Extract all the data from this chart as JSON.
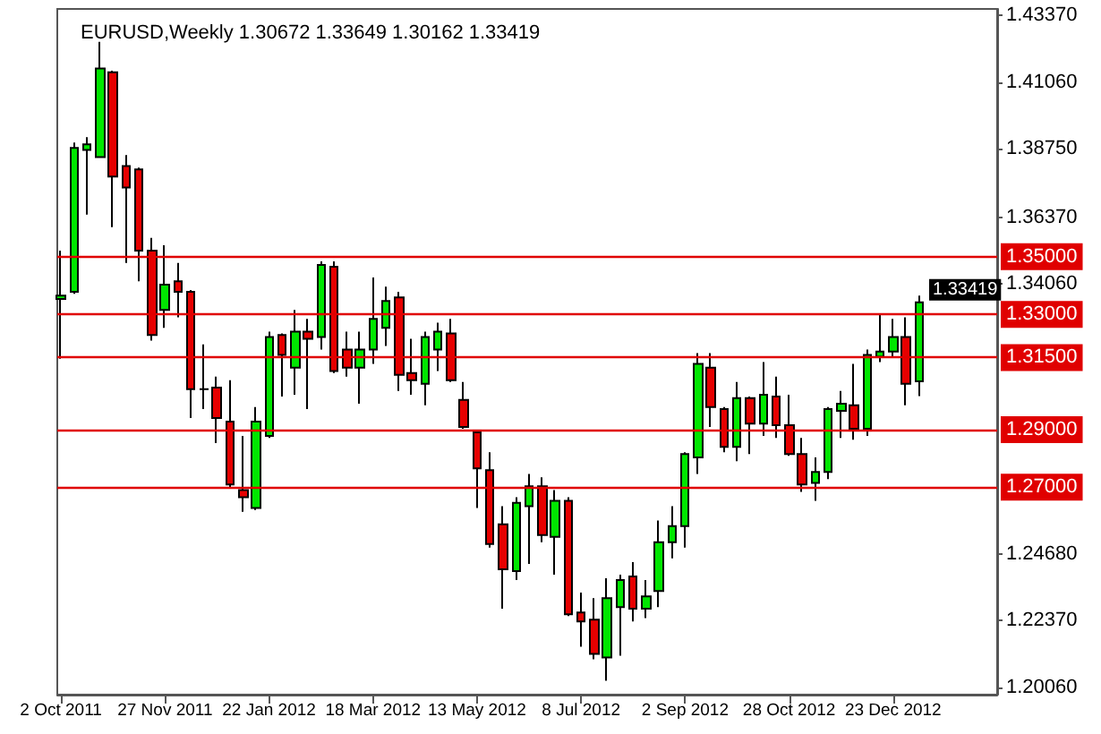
{
  "chart_data": {
    "type": "candlestick",
    "title": "EURUSD,Weekly 1.30672 1.33649 1.30162 1.33419",
    "x": [
      "2011-10-02",
      "2011-10-09",
      "2011-10-16",
      "2011-10-23",
      "2011-10-30",
      "2011-11-06",
      "2011-11-13",
      "2011-11-20",
      "2011-11-27",
      "2011-12-04",
      "2011-12-11",
      "2011-12-18",
      "2011-12-25",
      "2012-01-01",
      "2012-01-08",
      "2012-01-15",
      "2012-01-22",
      "2012-01-29",
      "2012-02-05",
      "2012-02-12",
      "2012-02-19",
      "2012-02-26",
      "2012-03-04",
      "2012-03-11",
      "2012-03-18",
      "2012-03-25",
      "2012-04-01",
      "2012-04-08",
      "2012-04-15",
      "2012-04-22",
      "2012-04-29",
      "2012-05-06",
      "2012-05-13",
      "2012-05-20",
      "2012-05-27",
      "2012-06-03",
      "2012-06-10",
      "2012-06-17",
      "2012-06-24",
      "2012-07-01",
      "2012-07-08",
      "2012-07-15",
      "2012-07-22",
      "2012-07-29",
      "2012-08-05",
      "2012-08-12",
      "2012-08-19",
      "2012-08-26",
      "2012-09-02",
      "2012-09-09",
      "2012-09-16",
      "2012-09-23",
      "2012-09-30",
      "2012-10-07",
      "2012-10-14",
      "2012-10-21",
      "2012-10-28",
      "2012-11-04",
      "2012-11-11",
      "2012-11-18",
      "2012-11-25",
      "2012-12-02",
      "2012-12-09",
      "2012-12-16",
      "2012-12-23",
      "2012-12-30",
      "2013-01-06"
    ],
    "ohlc": [
      [
        1.3353,
        1.3521,
        1.3146,
        1.3365
      ],
      [
        1.3378,
        1.3896,
        1.3371,
        1.3878
      ],
      [
        1.3871,
        1.3915,
        1.3646,
        1.389
      ],
      [
        1.3846,
        1.4246,
        1.3846,
        1.4153
      ],
      [
        1.414,
        1.4146,
        1.3603,
        1.3778
      ],
      [
        1.3815,
        1.3853,
        1.3478,
        1.374
      ],
      [
        1.3803,
        1.3809,
        1.3415,
        1.3521
      ],
      [
        1.3521,
        1.3565,
        1.3209,
        1.3228
      ],
      [
        1.3315,
        1.354,
        1.3253,
        1.3403
      ],
      [
        1.3415,
        1.3478,
        1.329,
        1.3378
      ],
      [
        1.3378,
        1.3384,
        1.294,
        1.304
      ],
      [
        1.304,
        1.3196,
        1.2971,
        1.304
      ],
      [
        1.3046,
        1.3084,
        1.2853,
        1.294
      ],
      [
        1.2928,
        1.3071,
        1.2696,
        1.2709
      ],
      [
        1.269,
        1.2878,
        1.2615,
        1.2665
      ],
      [
        1.2628,
        1.2978,
        1.2621,
        1.2928
      ],
      [
        1.2878,
        1.324,
        1.2871,
        1.3221
      ],
      [
        1.3228,
        1.3234,
        1.3015,
        1.3159
      ],
      [
        1.3115,
        1.3315,
        1.3021,
        1.324
      ],
      [
        1.324,
        1.3284,
        1.2971,
        1.3215
      ],
      [
        1.3221,
        1.3484,
        1.3178,
        1.3471
      ],
      [
        1.3465,
        1.3484,
        1.3096,
        1.3103
      ],
      [
        1.3178,
        1.324,
        1.3084,
        1.3115
      ],
      [
        1.3115,
        1.324,
        1.299,
        1.3178
      ],
      [
        1.3178,
        1.3428,
        1.3128,
        1.3284
      ],
      [
        1.3253,
        1.3396,
        1.319,
        1.3346
      ],
      [
        1.3359,
        1.3378,
        1.3034,
        1.309
      ],
      [
        1.3096,
        1.3215,
        1.3021,
        1.3071
      ],
      [
        1.3059,
        1.324,
        1.2984,
        1.3221
      ],
      [
        1.3178,
        1.3271,
        1.3103,
        1.324
      ],
      [
        1.3234,
        1.3284,
        1.3065,
        1.3071
      ],
      [
        1.3003,
        1.3065,
        1.2903,
        1.2909
      ],
      [
        1.289,
        1.2896,
        1.2628,
        1.2765
      ],
      [
        1.2759,
        1.2821,
        1.249,
        1.2503
      ],
      [
        1.2571,
        1.2634,
        1.2278,
        1.2415
      ],
      [
        1.2409,
        1.2665,
        1.2378,
        1.2646
      ],
      [
        1.2634,
        1.2746,
        1.2434,
        1.2703
      ],
      [
        1.2703,
        1.2734,
        1.2509,
        1.2534
      ],
      [
        1.2528,
        1.269,
        1.2396,
        1.2653
      ],
      [
        1.2653,
        1.2665,
        1.2253,
        1.2259
      ],
      [
        1.2265,
        1.2334,
        1.2146,
        1.2234
      ],
      [
        1.224,
        1.2315,
        1.2103,
        1.2121
      ],
      [
        1.2109,
        1.2384,
        1.2028,
        1.2315
      ],
      [
        1.2284,
        1.2396,
        1.2115,
        1.2378
      ],
      [
        1.239,
        1.244,
        1.2234,
        1.2278
      ],
      [
        1.2278,
        1.2378,
        1.2246,
        1.2321
      ],
      [
        1.234,
        1.2584,
        1.2284,
        1.2509
      ],
      [
        1.2509,
        1.2634,
        1.2453,
        1.2565
      ],
      [
        1.2565,
        1.2821,
        1.249,
        1.2815
      ],
      [
        1.2803,
        1.3165,
        1.2746,
        1.3128
      ],
      [
        1.3115,
        1.3165,
        1.2909,
        1.2978
      ],
      [
        1.2971,
        1.2978,
        1.2821,
        1.284
      ],
      [
        1.284,
        1.3065,
        1.279,
        1.3009
      ],
      [
        1.3009,
        1.3015,
        1.2815,
        1.2921
      ],
      [
        1.2921,
        1.3134,
        1.2878,
        1.3021
      ],
      [
        1.3015,
        1.3084,
        1.2871,
        1.2915
      ],
      [
        1.2915,
        1.3021,
        1.2809,
        1.2815
      ],
      [
        1.2815,
        1.2871,
        1.2684,
        1.2709
      ],
      [
        1.2715,
        1.2803,
        1.2653,
        1.2753
      ],
      [
        1.2753,
        1.2978,
        1.2728,
        1.2971
      ],
      [
        1.2965,
        1.3034,
        1.2871,
        1.299
      ],
      [
        1.2984,
        1.3128,
        1.2865,
        1.2903
      ],
      [
        1.2903,
        1.3178,
        1.2878,
        1.3159
      ],
      [
        1.3153,
        1.3303,
        1.3134,
        1.3171
      ],
      [
        1.3171,
        1.3284,
        1.3153,
        1.3221
      ],
      [
        1.3221,
        1.329,
        1.2984,
        1.3059
      ],
      [
        1.30672,
        1.33649,
        1.30162,
        1.33419
      ]
    ],
    "colors": [
      "#00e600",
      "#00e600",
      "#00e600",
      "#00e600",
      "#e60000",
      "#e60000",
      "#e60000",
      "#e60000",
      "#00e600",
      "#e60000",
      "#e60000",
      "#000000",
      "#e60000",
      "#e60000",
      "#e60000",
      "#00e600",
      "#00e600",
      "#e60000",
      "#00e600",
      "#e60000",
      "#00e600",
      "#e60000",
      "#e60000",
      "#00e600",
      "#00e600",
      "#00e600",
      "#e60000",
      "#e60000",
      "#00e600",
      "#00e600",
      "#e60000",
      "#e60000",
      "#e60000",
      "#e60000",
      "#e60000",
      "#00e600",
      "#00e600",
      "#e60000",
      "#00e600",
      "#e60000",
      "#e60000",
      "#e60000",
      "#00e600",
      "#00e600",
      "#e60000",
      "#00e600",
      "#00e600",
      "#00e600",
      "#00e600",
      "#00e600",
      "#e60000",
      "#e60000",
      "#00e600",
      "#e60000",
      "#00e600",
      "#e60000",
      "#e60000",
      "#e60000",
      "#00e600",
      "#00e600",
      "#00e600",
      "#e60000",
      "#00e600",
      "#00e600",
      "#00e600",
      "#e60000",
      "#00e600"
    ],
    "xlim": [
      "2011-09-30",
      "2013-02-17"
    ],
    "xticks": [
      {
        "value": "2011-10-02",
        "label": "2 Oct 2011"
      },
      {
        "value": "2011-11-27",
        "label": "27 Nov 2011"
      },
      {
        "value": "2012-01-22",
        "label": "22 Jan 2012"
      },
      {
        "value": "2012-03-18",
        "label": "18 Mar 2012"
      },
      {
        "value": "2012-05-13",
        "label": "13 May 2012"
      },
      {
        "value": "2012-07-08",
        "label": "8 Jul 2012"
      },
      {
        "value": "2012-09-02",
        "label": "2 Sep 2012"
      },
      {
        "value": "2012-10-28",
        "label": "28 Oct 2012"
      },
      {
        "value": "2012-12-23",
        "label": "23 Dec 2012"
      }
    ],
    "ylim": [
      1.198,
      1.436
    ],
    "yticks": [
      {
        "value": 1.4337,
        "label": "1.43370"
      },
      {
        "value": 1.4106,
        "label": "1.41060"
      },
      {
        "value": 1.3875,
        "label": "1.38750"
      },
      {
        "value": 1.3637,
        "label": "1.36370"
      },
      {
        "value": 1.3406,
        "label": "1.34060"
      },
      {
        "value": 1.2468,
        "label": "1.24680"
      },
      {
        "value": 1.2237,
        "label": "1.22370"
      },
      {
        "value": 1.2006,
        "label": "1.20060"
      }
    ],
    "ref_lines": [
      {
        "axis": "y",
        "value": 1.35,
        "label": "1.35000",
        "color": "#e00000"
      },
      {
        "axis": "y",
        "value": 1.33,
        "label": "1.33000",
        "color": "#e00000"
      },
      {
        "axis": "y",
        "value": 1.315,
        "label": "1.31500",
        "color": "#e00000"
      },
      {
        "axis": "y",
        "value": 1.29,
        "label": "1.29000",
        "color": "#e00000"
      },
      {
        "axis": "y",
        "value": 1.27,
        "label": "1.27000",
        "color": "#e00000"
      }
    ],
    "annotations": [
      "1.33419"
    ]
  }
}
